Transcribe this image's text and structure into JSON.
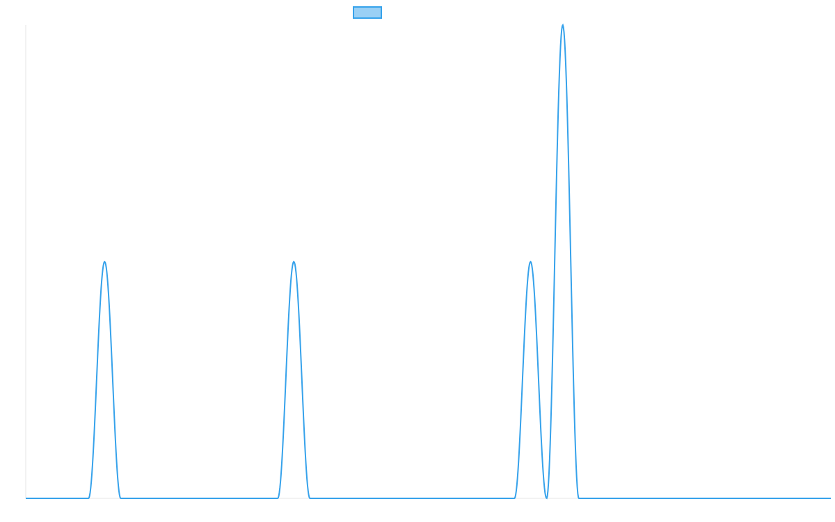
{
  "chart_data": {
    "type": "line",
    "title": "",
    "xlabel": "",
    "ylabel": "",
    "xlim": [
      0,
      50
    ],
    "ylim": [
      0,
      2
    ],
    "grid": false,
    "legend": {
      "placement": "top-center",
      "entries": [
        {
          "label": "",
          "swatch_fill": "#9ad0f5",
          "swatch_stroke": "#36a2eb"
        }
      ]
    },
    "series": [
      {
        "color": "#36a2eb",
        "peaks": [
          {
            "x": 4.9,
            "y": 1.0,
            "half_width": 1.0
          },
          {
            "x": 16.65,
            "y": 1.0,
            "half_width": 1.0
          },
          {
            "x": 31.35,
            "y": 1.0,
            "half_width": 1.0
          },
          {
            "x": 33.35,
            "y": 2.0,
            "half_width": 1.0
          }
        ]
      }
    ]
  },
  "colors": {
    "line": "#36a2eb",
    "legend_fill": "#9ad0f5",
    "axis": "#e6e6e6"
  }
}
